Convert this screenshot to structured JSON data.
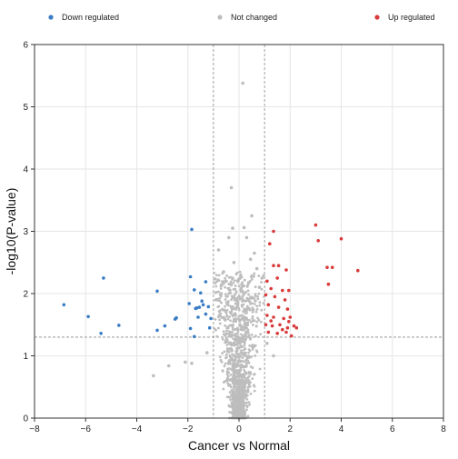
{
  "chart_data": {
    "type": "scatter",
    "title": "",
    "xlabel": "Cancer vs Normal",
    "ylabel": "-log10(P-value)",
    "xlim": [
      -8,
      8
    ],
    "ylim": [
      0,
      6
    ],
    "xticks": [
      -8,
      -6,
      -4,
      -2,
      0,
      2,
      4,
      6,
      8
    ],
    "yticks": [
      0,
      1,
      2,
      3,
      4,
      5,
      6
    ],
    "grid": true,
    "legend_position": "top",
    "thresholds": {
      "x": [
        -1,
        1
      ],
      "y": 1.3
    },
    "series": [
      {
        "name": "Down regulated",
        "color": "#3a7dc4",
        "points": [
          [
            -6.85,
            1.82
          ],
          [
            -5.9,
            1.63
          ],
          [
            -5.4,
            1.36
          ],
          [
            -5.3,
            2.25
          ],
          [
            -4.7,
            1.49
          ],
          [
            -3.2,
            2.04
          ],
          [
            -3.2,
            1.41
          ],
          [
            -2.5,
            1.59
          ],
          [
            -2.45,
            1.61
          ],
          [
            -1.85,
            3.03
          ],
          [
            -1.9,
            2.27
          ],
          [
            -1.95,
            1.84
          ],
          [
            -1.9,
            1.44
          ],
          [
            -1.75,
            2.06
          ],
          [
            -1.7,
            1.76
          ],
          [
            -1.65,
            1.77
          ],
          [
            -1.6,
            1.62
          ],
          [
            -1.55,
            1.78
          ],
          [
            -1.5,
            2.01
          ],
          [
            -1.45,
            1.88
          ],
          [
            -1.4,
            1.82
          ],
          [
            -1.3,
            2.19
          ],
          [
            -1.3,
            1.67
          ],
          [
            -1.2,
            1.79
          ],
          [
            -1.15,
            1.45
          ],
          [
            -1.75,
            1.31
          ],
          [
            -2.9,
            1.48
          ],
          [
            -1.1,
            1.6
          ]
        ]
      },
      {
        "name": "Not changed",
        "color": "#bdbdbd",
        "points": [
          [
            0.15,
            5.38
          ],
          [
            -0.3,
            3.7
          ],
          [
            0.5,
            3.25
          ],
          [
            0.2,
            3.06
          ],
          [
            -0.25,
            3.05
          ],
          [
            -0.4,
            2.9
          ],
          [
            -0.8,
            2.7
          ],
          [
            0.45,
            2.55
          ],
          [
            -0.6,
            2.35
          ],
          [
            0.3,
            2.9
          ],
          [
            0.7,
            2.4
          ],
          [
            -0.2,
            2.5
          ],
          [
            -3.35,
            0.68
          ],
          [
            -1.85,
            0.88
          ],
          [
            -2.1,
            0.9
          ],
          [
            -2.75,
            0.84
          ],
          [
            1.35,
            1.0
          ],
          [
            1.1,
            1.2
          ],
          [
            -1.25,
            1.05
          ],
          [
            0.8,
            2.1
          ],
          [
            -0.7,
            2.0
          ],
          [
            0.9,
            2.25
          ],
          [
            -0.9,
            1.9
          ],
          [
            0.6,
            2.65
          ],
          [
            -0.5,
            2.2
          ]
        ]
      },
      {
        "name": "Up regulated",
        "color": "#d93b3b",
        "points": [
          [
            3.0,
            3.1
          ],
          [
            4.0,
            2.88
          ],
          [
            3.1,
            2.85
          ],
          [
            1.35,
            3.0
          ],
          [
            1.2,
            2.8
          ],
          [
            4.65,
            2.37
          ],
          [
            3.45,
            2.42
          ],
          [
            3.65,
            2.42
          ],
          [
            3.5,
            2.15
          ],
          [
            1.35,
            2.45
          ],
          [
            1.55,
            2.45
          ],
          [
            1.85,
            2.38
          ],
          [
            1.1,
            2.2
          ],
          [
            1.5,
            2.25
          ],
          [
            1.25,
            2.08
          ],
          [
            1.7,
            2.05
          ],
          [
            1.95,
            2.05
          ],
          [
            1.05,
            1.98
          ],
          [
            1.4,
            1.95
          ],
          [
            1.8,
            1.9
          ],
          [
            1.15,
            1.82
          ],
          [
            1.55,
            1.78
          ],
          [
            1.9,
            1.75
          ],
          [
            1.1,
            1.65
          ],
          [
            1.35,
            1.62
          ],
          [
            1.75,
            1.6
          ],
          [
            2.0,
            1.62
          ],
          [
            1.05,
            1.5
          ],
          [
            1.3,
            1.48
          ],
          [
            1.6,
            1.5
          ],
          [
            1.9,
            1.45
          ],
          [
            2.15,
            1.48
          ],
          [
            2.25,
            1.45
          ],
          [
            1.15,
            1.38
          ],
          [
            1.5,
            1.36
          ],
          [
            1.85,
            1.38
          ],
          [
            2.05,
            1.32
          ],
          [
            1.25,
            1.56
          ],
          [
            1.7,
            1.42
          ],
          [
            1.95,
            1.55
          ]
        ]
      }
    ]
  }
}
